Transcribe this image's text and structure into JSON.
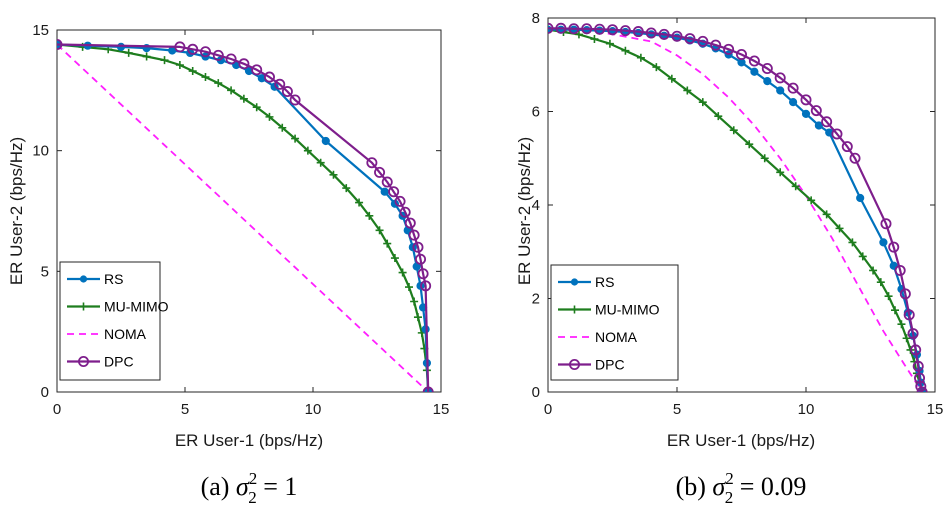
{
  "colors": {
    "RS": "#0072BD",
    "MU-MIMO": "#1E7D1E",
    "NOMA": "#FF1FFF",
    "DPC": "#7E1E8C"
  },
  "chart_data": [
    {
      "type": "line",
      "title": "",
      "xlabel": "ER User-1 (bps/Hz)",
      "ylabel": "ER User-2 (bps/Hz)",
      "xlim": [
        0,
        15
      ],
      "ylim": [
        0,
        15
      ],
      "xticks": [
        0,
        5,
        10,
        15
      ],
      "yticks": [
        0,
        5,
        10,
        15
      ],
      "grid": false,
      "legend": "bottom-left",
      "caption": {
        "prefix": "(a) ",
        "sym": "σ",
        "sub": "2",
        "sup": "2",
        "rest": " = 1"
      },
      "series": [
        {
          "name": "RS",
          "marker": "dot",
          "dash": "solid",
          "x": [
            0,
            1.2,
            2.5,
            3.5,
            4.5,
            5.2,
            5.8,
            6.4,
            7.0,
            7.5,
            8.0,
            8.5,
            10.5,
            12.8,
            13.2,
            13.5,
            13.7,
            13.9,
            14.05,
            14.2,
            14.3,
            14.4,
            14.45,
            14.5
          ],
          "y": [
            14.4,
            14.35,
            14.3,
            14.25,
            14.15,
            14.05,
            13.9,
            13.75,
            13.55,
            13.3,
            13.0,
            12.65,
            10.4,
            8.3,
            7.8,
            7.3,
            6.7,
            6.0,
            5.2,
            4.4,
            3.5,
            2.6,
            1.2,
            0
          ]
        },
        {
          "name": "MU-MIMO",
          "marker": "plus",
          "dash": "solid",
          "x": [
            0,
            1.0,
            2.0,
            2.8,
            3.5,
            4.2,
            4.8,
            5.3,
            5.8,
            6.3,
            6.8,
            7.3,
            7.8,
            8.3,
            8.8,
            9.3,
            9.8,
            10.3,
            10.8,
            11.3,
            11.8,
            12.2,
            12.6,
            12.9,
            13.2,
            13.5,
            13.75,
            13.95,
            14.1,
            14.25,
            14.35,
            14.45,
            14.5
          ],
          "y": [
            14.4,
            14.3,
            14.2,
            14.05,
            13.9,
            13.75,
            13.55,
            13.3,
            13.05,
            12.8,
            12.5,
            12.15,
            11.8,
            11.4,
            10.95,
            10.5,
            10.0,
            9.5,
            9.0,
            8.45,
            7.85,
            7.3,
            6.7,
            6.15,
            5.55,
            4.95,
            4.35,
            3.75,
            3.1,
            2.45,
            1.8,
            0.9,
            0
          ]
        },
        {
          "name": "NOMA",
          "marker": "none",
          "dash": "dashed",
          "x": [
            0,
            14.5
          ],
          "y": [
            14.4,
            0
          ]
        },
        {
          "name": "DPC",
          "marker": "circle",
          "dash": "solid",
          "x": [
            0,
            4.8,
            5.3,
            5.8,
            6.3,
            6.8,
            7.3,
            7.8,
            8.3,
            8.7,
            9.0,
            9.3,
            12.3,
            12.6,
            12.9,
            13.15,
            13.4,
            13.6,
            13.8,
            13.95,
            14.1,
            14.2,
            14.3,
            14.4,
            14.5
          ],
          "y": [
            14.4,
            14.3,
            14.2,
            14.1,
            13.95,
            13.8,
            13.6,
            13.35,
            13.05,
            12.75,
            12.45,
            12.1,
            9.5,
            9.1,
            8.7,
            8.3,
            7.9,
            7.45,
            7.0,
            6.5,
            6.0,
            5.5,
            4.9,
            4.4,
            0
          ]
        }
      ]
    },
    {
      "type": "line",
      "title": "",
      "xlabel": "ER User-1 (bps/Hz)",
      "ylabel": "ER User-2 (bps/Hz)",
      "xlim": [
        0,
        15
      ],
      "ylim": [
        0,
        8
      ],
      "xticks": [
        0,
        5,
        10,
        15
      ],
      "yticks": [
        0,
        2,
        4,
        6,
        8
      ],
      "grid": false,
      "legend": "bottom-left",
      "caption": {
        "prefix": "(b) ",
        "sym": "σ",
        "sub": "2",
        "sup": "2",
        "rest": " = 0.09"
      },
      "series": [
        {
          "name": "RS",
          "marker": "dot",
          "dash": "solid",
          "x": [
            0,
            0.5,
            1.0,
            1.5,
            2.0,
            2.5,
            3.0,
            3.5,
            4.0,
            4.5,
            5.0,
            5.5,
            6.0,
            6.5,
            7.0,
            7.5,
            8.0,
            8.5,
            9.0,
            9.5,
            10.0,
            10.5,
            10.9,
            12.1,
            13.0,
            13.4,
            13.7,
            13.95,
            14.15,
            14.3,
            14.4,
            14.45,
            14.5
          ],
          "y": [
            7.75,
            7.75,
            7.75,
            7.74,
            7.73,
            7.72,
            7.7,
            7.68,
            7.65,
            7.62,
            7.58,
            7.52,
            7.45,
            7.35,
            7.22,
            7.05,
            6.85,
            6.65,
            6.45,
            6.2,
            5.95,
            5.7,
            5.55,
            4.15,
            3.2,
            2.7,
            2.2,
            1.7,
            1.2,
            0.8,
            0.45,
            0.2,
            0
          ]
        },
        {
          "name": "MU-MIMO",
          "marker": "plus",
          "dash": "solid",
          "x": [
            0,
            0.6,
            1.2,
            1.8,
            2.4,
            3.0,
            3.6,
            4.2,
            4.8,
            5.4,
            6.0,
            6.6,
            7.2,
            7.8,
            8.4,
            9.0,
            9.6,
            10.2,
            10.8,
            11.3,
            11.8,
            12.2,
            12.6,
            12.9,
            13.2,
            13.45,
            13.7,
            13.9,
            14.05,
            14.2,
            14.3,
            14.4,
            14.5
          ],
          "y": [
            7.75,
            7.7,
            7.65,
            7.55,
            7.45,
            7.3,
            7.15,
            6.95,
            6.7,
            6.45,
            6.2,
            5.9,
            5.6,
            5.3,
            5.0,
            4.7,
            4.4,
            4.1,
            3.8,
            3.5,
            3.2,
            2.9,
            2.6,
            2.35,
            2.05,
            1.75,
            1.45,
            1.15,
            0.9,
            0.65,
            0.4,
            0.2,
            0
          ]
        },
        {
          "name": "NOMA",
          "marker": "none",
          "dash": "dashed",
          "x": [
            0,
            2,
            4,
            5,
            6,
            7,
            8,
            9,
            10,
            11,
            12,
            13,
            13.8,
            14.5
          ],
          "y": [
            7.75,
            7.7,
            7.5,
            7.2,
            6.8,
            6.3,
            5.7,
            5.0,
            4.2,
            3.3,
            2.3,
            1.3,
            0.6,
            0
          ]
        },
        {
          "name": "DPC",
          "marker": "circle",
          "dash": "solid",
          "x": [
            0,
            0.5,
            1.0,
            1.5,
            2.0,
            2.5,
            3.0,
            3.5,
            4.0,
            4.5,
            5.0,
            5.5,
            6.0,
            6.5,
            7.0,
            7.5,
            8.0,
            8.5,
            9.0,
            9.5,
            10.0,
            10.4,
            10.8,
            11.2,
            11.6,
            11.9,
            13.1,
            13.4,
            13.65,
            13.85,
            14.0,
            14.15,
            14.25,
            14.35,
            14.4,
            14.45,
            14.5
          ],
          "y": [
            7.78,
            7.78,
            7.77,
            7.77,
            7.76,
            7.75,
            7.73,
            7.71,
            7.68,
            7.65,
            7.61,
            7.56,
            7.5,
            7.42,
            7.33,
            7.22,
            7.08,
            6.92,
            6.72,
            6.5,
            6.25,
            6.02,
            5.78,
            5.52,
            5.25,
            5.0,
            3.6,
            3.1,
            2.6,
            2.1,
            1.65,
            1.25,
            0.9,
            0.55,
            0.3,
            0.12,
            0
          ]
        }
      ]
    }
  ]
}
